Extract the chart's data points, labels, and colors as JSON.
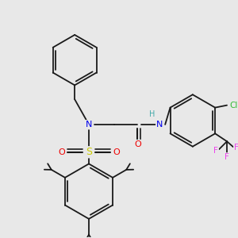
{
  "background_color": "#e8e8e8",
  "bond_color": "#1a1a1a",
  "atom_colors": {
    "N": "#0000ee",
    "S": "#cccc00",
    "O": "#ee0000",
    "Cl": "#33bb33",
    "F": "#ee44ee",
    "H_label": "#44aaaa",
    "C": "#1a1a1a"
  },
  "figsize": [
    3.0,
    3.0
  ],
  "dpi": 100
}
